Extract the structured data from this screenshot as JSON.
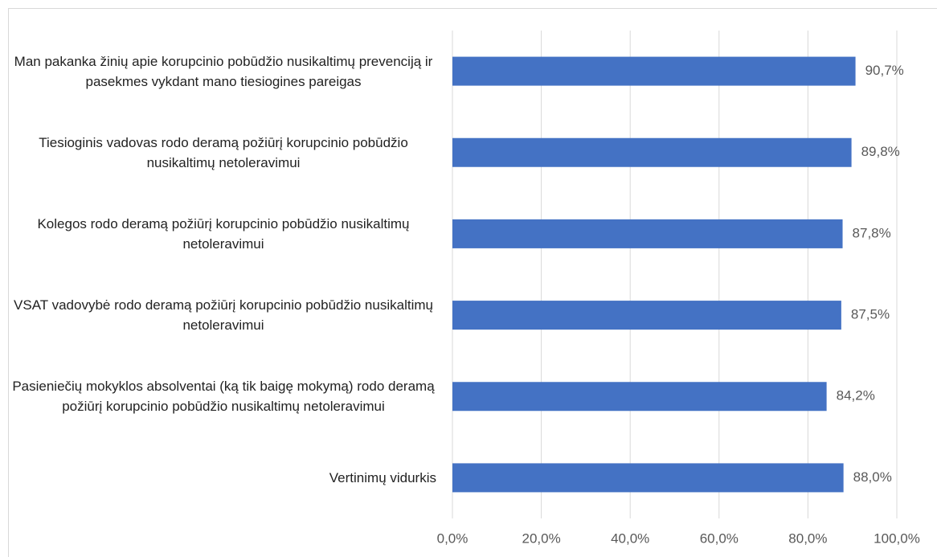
{
  "chart_data": {
    "type": "bar",
    "orientation": "horizontal",
    "categories": [
      "Man pakanka žinių apie korupcinio pobūdžio nusikaltimų prevenciją ir pasekmes vykdant mano tiesiogines pareigas",
      "Tiesioginis vadovas rodo deramą požiūrį korupcinio pobūdžio nusikaltimų netoleravimui",
      "Kolegos rodo deramą požiūrį korupcinio pobūdžio nusikaltimų netoleravimui",
      "VSAT vadovybė rodo deramą požiūrį korupcinio pobūdžio nusikaltimų netoleravimui",
      "Pasieniečių mokyklos absolventai (ką tik baigę mokymą) rodo deramą požiūrį korupcinio pobūdžio nusikaltimų netoleravimui",
      "Vertinimų vidurkis"
    ],
    "values": [
      90.7,
      89.8,
      87.8,
      87.5,
      84.2,
      88.0
    ],
    "value_labels": [
      "90,7%",
      "89,8%",
      "87,8%",
      "87,5%",
      "84,2%",
      "88,0%"
    ],
    "color": "#4472c4",
    "xlim": [
      0,
      100
    ],
    "xticks": [
      {
        "value": 0,
        "label": "0,0%"
      },
      {
        "value": 20,
        "label": "20,0%"
      },
      {
        "value": 40,
        "label": "40,0%"
      },
      {
        "value": 60,
        "label": "60,0%"
      },
      {
        "value": 80,
        "label": "80,0%"
      },
      {
        "value": 100,
        "label": "100,0%"
      }
    ],
    "grid": true
  }
}
